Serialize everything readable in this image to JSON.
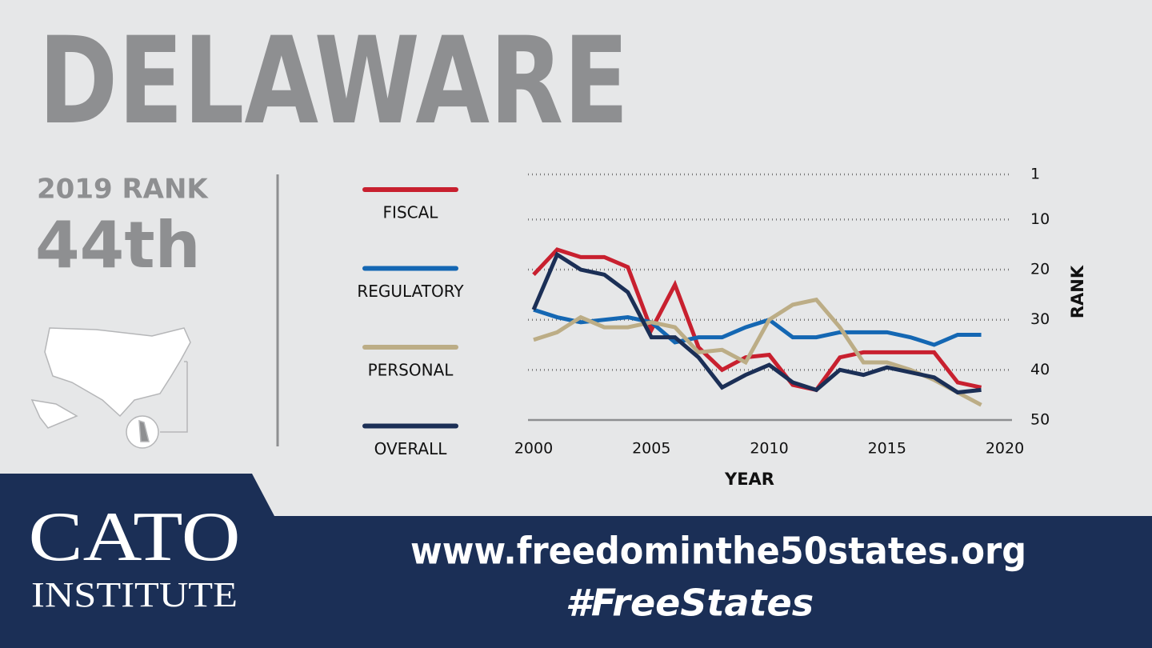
{
  "title": "DELAWARE",
  "rank_label": "2019 RANK",
  "rank": "44th",
  "logo": {
    "name": "CATO",
    "subtitle": "INSTITUTE"
  },
  "footer": {
    "url": "www.freedominthe50states.org",
    "hashtag": "#FreeStates"
  },
  "chart_data": {
    "type": "line",
    "x_label": "YEAR",
    "y_label": "RANK",
    "x": [
      2000,
      2001,
      2002,
      2003,
      2004,
      2005,
      2006,
      2007,
      2008,
      2009,
      2010,
      2011,
      2012,
      2013,
      2014,
      2015,
      2016,
      2017,
      2018,
      2019
    ],
    "xlim": [
      2000,
      2020
    ],
    "xticks": [
      2000,
      2005,
      2010,
      2015,
      2020
    ],
    "ylim": [
      50,
      1
    ],
    "yticks": [
      1,
      10,
      20,
      30,
      40,
      50
    ],
    "grid": true,
    "series": [
      {
        "name": "FISCAL",
        "color": "#c8202f",
        "values": [
          21,
          16,
          17.5,
          17.5,
          19.5,
          32,
          23,
          35.5,
          40,
          37.5,
          37,
          43,
          44,
          37.5,
          36.5,
          36.5,
          36.5,
          36.5,
          42.5,
          43.5
        ]
      },
      {
        "name": "REGULATORY",
        "color": "#1467b3",
        "values": [
          28,
          29.5,
          30.5,
          30,
          29.5,
          30.5,
          34.5,
          33.5,
          33.5,
          31.5,
          30,
          33.5,
          33.5,
          32.5,
          32.5,
          32.5,
          33.5,
          35,
          33,
          33
        ]
      },
      {
        "name": "PERSONAL",
        "color": "#bcad86",
        "values": [
          34,
          32.5,
          29.5,
          31.5,
          31.5,
          30.5,
          31.5,
          36.5,
          36,
          38.5,
          30,
          27,
          26,
          31.5,
          38.5,
          38.5,
          40,
          42,
          44.5,
          47
        ]
      },
      {
        "name": "OVERALL",
        "color": "#1b2f56",
        "values": [
          28,
          17,
          20,
          21,
          24.5,
          33.5,
          33.5,
          37.5,
          43.5,
          41,
          39,
          42.5,
          44,
          40,
          41,
          39.5,
          40.5,
          41.5,
          44.5,
          44
        ]
      }
    ]
  }
}
